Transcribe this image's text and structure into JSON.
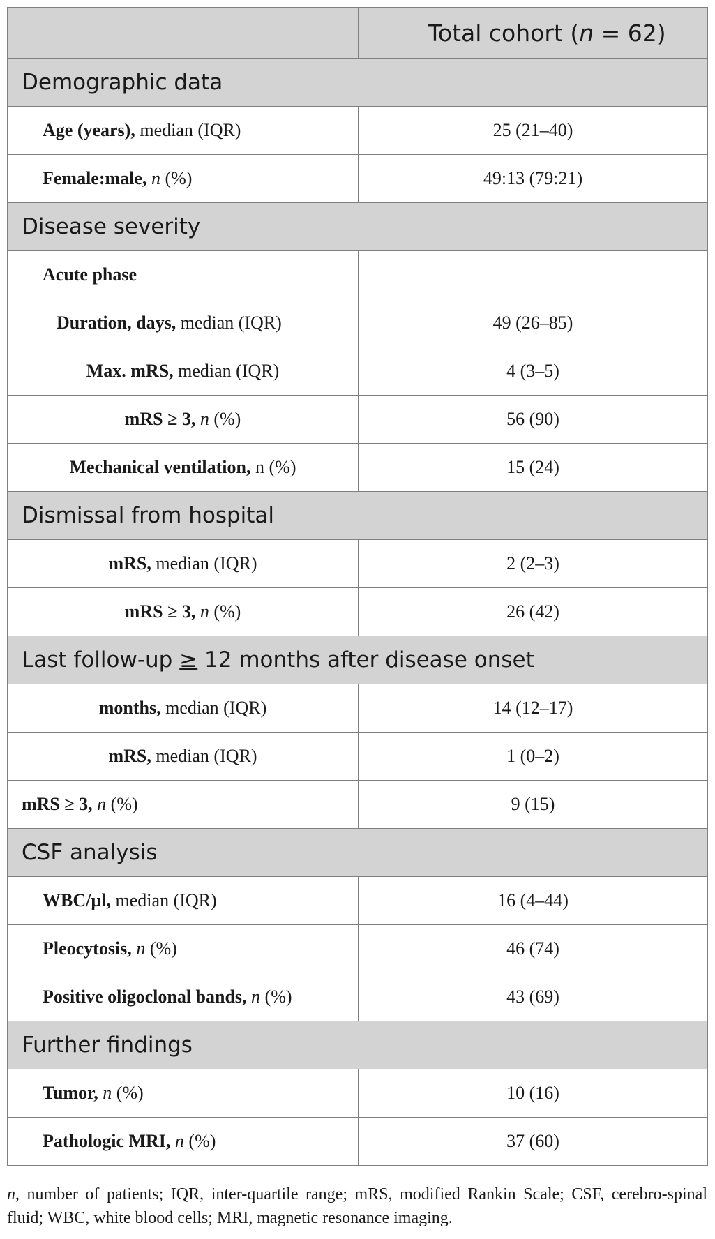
{
  "header": {
    "column_label_prefix": "Total cohort (",
    "column_label_n": "n",
    "column_label_suffix": " = 62)"
  },
  "sections": [
    {
      "title": "Demographic data",
      "rows": [
        {
          "bold": "Age (years),",
          "normal": " median (IQR)",
          "italic_n": false,
          "value": "25 (21–40)"
        },
        {
          "bold": "Female:male,",
          "normal": " (%)",
          "italic_n": true,
          "value": "49:13 (79:21)"
        }
      ]
    },
    {
      "title": "Disease severity",
      "rows": [
        {
          "bold": "Acute phase",
          "normal": "",
          "italic_n": false,
          "value": ""
        },
        {
          "bold": "Duration, days,",
          "normal": " median (IQR)",
          "italic_n": false,
          "value": "49 (26–85)"
        },
        {
          "bold": "Max. mRS,",
          "normal": " median (IQR)",
          "italic_n": false,
          "value": "4 (3–5)"
        },
        {
          "bold": "mRS ≥ 3,",
          "normal": " (%)",
          "italic_n": true,
          "value": "56 (90)"
        },
        {
          "bold": "Mechanical ventilation,",
          "normal": " n (%)",
          "italic_n": false,
          "value": "15 (24)"
        }
      ]
    },
    {
      "title": "Dismissal from hospital",
      "rows": [
        {
          "bold": "mRS,",
          "normal": " median (IQR)",
          "italic_n": false,
          "value": "2 (2–3)"
        },
        {
          "bold": "mRS ≥ 3,",
          "normal": " (%)",
          "italic_n": true,
          "value": "26 (42)"
        }
      ]
    },
    {
      "title_prefix": "Last follow-up ",
      "title_ge": "≥",
      "title_suffix": " 12 months after disease onset",
      "rows": [
        {
          "bold": "months,",
          "normal": " median (IQR)",
          "italic_n": false,
          "value": "14 (12–17)"
        },
        {
          "bold": "mRS,",
          "normal": " median (IQR)",
          "italic_n": false,
          "value": "1 (0–2)"
        },
        {
          "bold": "mRS ≥ 3,",
          "normal": " (%)",
          "italic_n": true,
          "value": "9 (15)"
        }
      ]
    },
    {
      "title": "CSF analysis",
      "rows": [
        {
          "bold": "WBC/µl,",
          "normal": " median (IQR)",
          "italic_n": false,
          "value": "16 (4–44)"
        },
        {
          "bold": "Pleocytosis,",
          "normal": " (%)",
          "italic_n": true,
          "value": "46 (74)"
        },
        {
          "bold": "Positive oligoclonal bands,",
          "normal": " (%)",
          "italic_n": true,
          "value": "43 (69)"
        }
      ]
    },
    {
      "title": "Further findings",
      "rows": [
        {
          "bold": "Tumor,",
          "normal": " (%)",
          "italic_n": true,
          "value": "10 (16)"
        },
        {
          "bold": "Pathologic MRI,",
          "normal": " (%)",
          "italic_n": true,
          "value": "37 (60)"
        }
      ]
    }
  ],
  "footnote": {
    "n": "n",
    "text": ", number of patients; IQR, inter-quartile range; mRS, modified Rankin Scale; CSF, cerebro-spinal fluid; WBC, white blood cells; MRI, magnetic resonance imaging."
  },
  "n_symbol": "n"
}
